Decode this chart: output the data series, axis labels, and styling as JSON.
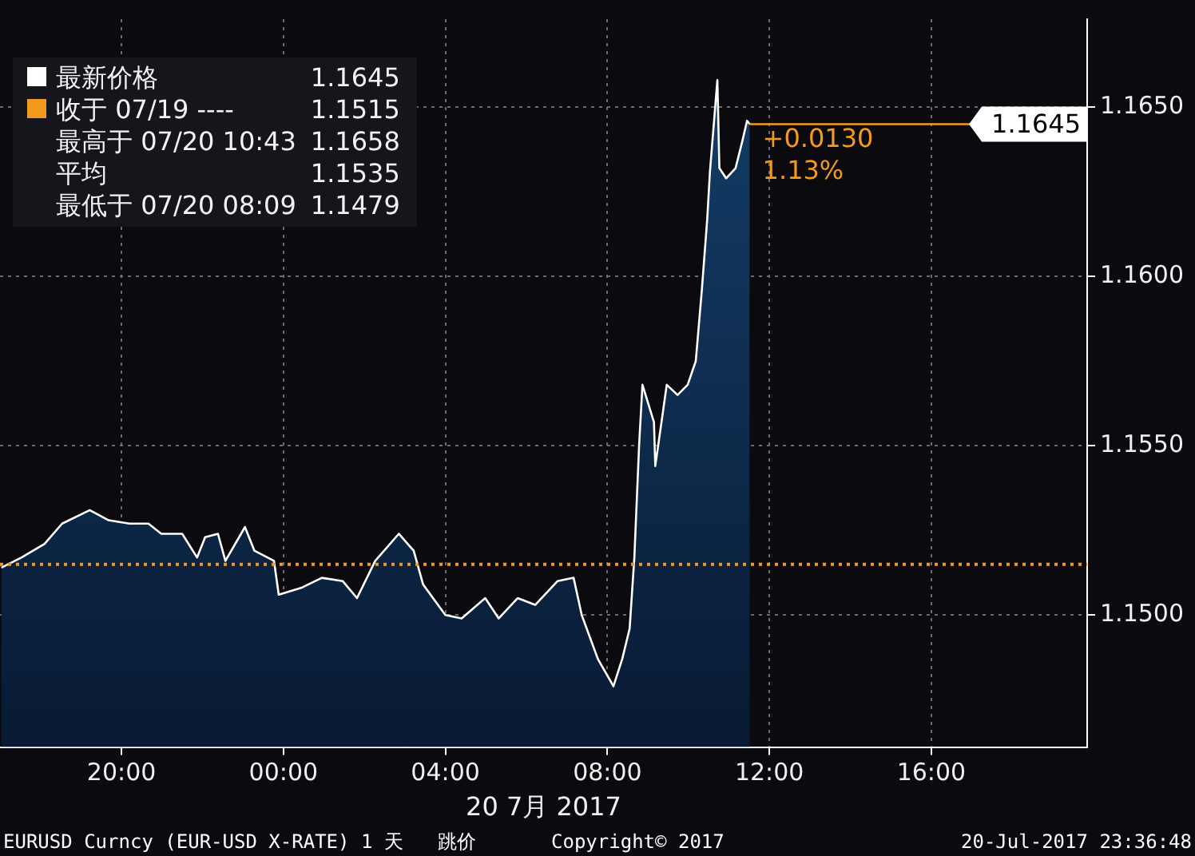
{
  "chart_data": {
    "type": "area",
    "xlabel": "20 7月 2017",
    "x": [
      "2017-07-19T17:02",
      "2017-07-19T17:32",
      "2017-07-19T18:06",
      "2017-07-19T18:32",
      "2017-07-19T19:13",
      "2017-07-19T19:41",
      "2017-07-19T20:12",
      "2017-07-19T20:40",
      "2017-07-19T20:59",
      "2017-07-19T21:30",
      "2017-07-19T21:52",
      "2017-07-19T22:04",
      "2017-07-19T22:23",
      "2017-07-19T22:34",
      "2017-07-19T23:03",
      "2017-07-19T23:17",
      "2017-07-19T23:46",
      "2017-07-19T23:53",
      "2017-07-20T00:26",
      "2017-07-20T00:57",
      "2017-07-20T01:28",
      "2017-07-20T01:49",
      "2017-07-20T02:16",
      "2017-07-20T02:51",
      "2017-07-20T03:13",
      "2017-07-20T03:27",
      "2017-07-20T04:00",
      "2017-07-20T04:24",
      "2017-07-20T04:59",
      "2017-07-20T05:19",
      "2017-07-20T05:47",
      "2017-07-20T06:13",
      "2017-07-20T06:46",
      "2017-07-20T07:10",
      "2017-07-20T07:22",
      "2017-07-20T07:46",
      "2017-07-20T08:09",
      "2017-07-20T08:22",
      "2017-07-20T08:33",
      "2017-07-20T08:40",
      "2017-07-20T08:47",
      "2017-07-20T08:52",
      "2017-07-20T09:09",
      "2017-07-20T09:11",
      "2017-07-20T09:28",
      "2017-07-20T09:44",
      "2017-07-20T09:59",
      "2017-07-20T10:11",
      "2017-07-20T10:20",
      "2017-07-20T10:28",
      "2017-07-20T10:32",
      "2017-07-20T10:43",
      "2017-07-20T10:46",
      "2017-07-20T10:56",
      "2017-07-20T11:10",
      "2017-07-20T11:20",
      "2017-07-20T11:27",
      "2017-07-20T11:31"
    ],
    "series": [
      {
        "name": "最新价格",
        "color": "#ffffff",
        "values": [
          1.1514,
          1.1517,
          1.1521,
          1.1527,
          1.1531,
          1.1528,
          1.1527,
          1.1527,
          1.1524,
          1.1524,
          1.1517,
          1.1523,
          1.1524,
          1.1516,
          1.1526,
          1.1519,
          1.1516,
          1.1506,
          1.1508,
          1.1511,
          1.151,
          1.1505,
          1.1516,
          1.1524,
          1.1519,
          1.1509,
          1.15,
          1.1499,
          1.1505,
          1.1499,
          1.1505,
          1.1503,
          1.151,
          1.1511,
          1.15,
          1.1487,
          1.1479,
          1.1487,
          1.1496,
          1.1517,
          1.155,
          1.1568,
          1.1557,
          1.1544,
          1.1568,
          1.1565,
          1.1568,
          1.1575,
          1.1596,
          1.1617,
          1.1631,
          1.1658,
          1.1632,
          1.1629,
          1.1632,
          1.164,
          1.1646,
          1.1645
        ]
      }
    ],
    "xlim": [
      "2017-07-19T17:00",
      "2017-07-20T19:51"
    ],
    "xticks": [
      {
        "value": "2017-07-19T20:00",
        "label": "20:00"
      },
      {
        "value": "2017-07-20T00:00",
        "label": "00:00"
      },
      {
        "value": "2017-07-20T04:00",
        "label": "04:00"
      },
      {
        "value": "2017-07-20T08:00",
        "label": "08:00"
      },
      {
        "value": "2017-07-20T12:00",
        "label": "12:00"
      },
      {
        "value": "2017-07-20T16:00",
        "label": "16:00"
      }
    ],
    "ylim": [
      1.1461,
      1.1676
    ],
    "yticks": [
      {
        "value": 1.15,
        "label": "1.1500"
      },
      {
        "value": 1.155,
        "label": "1.1550"
      },
      {
        "value": 1.16,
        "label": "1.1600"
      },
      {
        "value": 1.165,
        "label": "1.1650"
      }
    ],
    "ref_lines": [
      {
        "axis": "y",
        "value": 1.1515,
        "label": "收于 07/19 ----",
        "color": "#f39a1e",
        "line_style": "dotted"
      },
      {
        "axis": "y",
        "value": 1.1645,
        "label": "1.1645",
        "color": "#f39a1e",
        "line_style": "solid"
      }
    ],
    "annotations": [
      "1.1645",
      "1.1515",
      "最高于 07/20 10:43",
      "1.1658",
      "平均",
      "1.1535",
      "最低于 07/20 08:09",
      "1.1479",
      "+0.0130",
      "1.13%",
      "EURUSD Curncy (EUR-USD X-RATE) 1 天   跳价",
      "Copyright© 2017",
      "20-Jul-2017 23:36:48"
    ],
    "grid": true,
    "legend": "top left"
  }
}
